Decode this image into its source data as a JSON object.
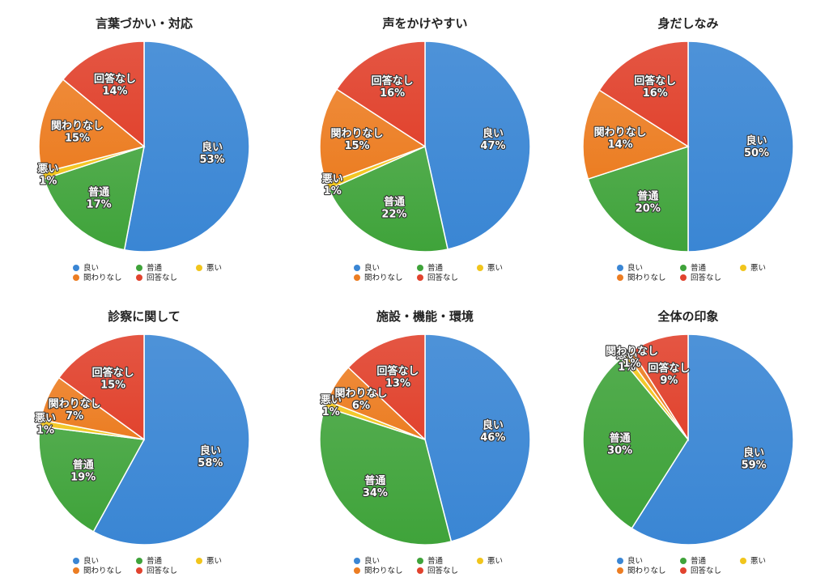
{
  "colors": {
    "good": "#3a86d4",
    "normal": "#3fa33a",
    "bad": "#f1c51c",
    "unrelated": "#ec7d22",
    "no_answer": "#e1432e"
  },
  "chart_data": [
    {
      "type": "pie",
      "title": "言葉づかい・対応",
      "slices": [
        {
          "label": "良い",
          "value": 53,
          "value_label": "53%",
          "key": "good"
        },
        {
          "label": "普通",
          "value": 17,
          "value_label": "17%",
          "key": "normal"
        },
        {
          "label": "悪い",
          "value": 1,
          "value_label": "1%",
          "key": "bad"
        },
        {
          "label": "関わりなし",
          "value": 15,
          "value_label": "15%",
          "key": "unrelated"
        },
        {
          "label": "回答なし",
          "value": 14,
          "value_label": "14%",
          "key": "no_answer"
        }
      ],
      "legend": [
        "良い",
        "普通",
        "悪い",
        "関わりなし",
        "回答なし"
      ]
    },
    {
      "type": "pie",
      "title": "声をかけやすい",
      "slices": [
        {
          "label": "良い",
          "value": 47,
          "value_label": "47%",
          "key": "good"
        },
        {
          "label": "普通",
          "value": 22,
          "value_label": "22%",
          "key": "normal"
        },
        {
          "label": "悪い",
          "value": 1,
          "value_label": "1%",
          "key": "bad"
        },
        {
          "label": "関わりなし",
          "value": 15,
          "value_label": "15%",
          "key": "unrelated"
        },
        {
          "label": "回答なし",
          "value": 16,
          "value_label": "16%",
          "key": "no_answer"
        }
      ],
      "legend": [
        "良い",
        "普通",
        "悪い",
        "関わりなし",
        "回答なし"
      ]
    },
    {
      "type": "pie",
      "title": "身だしなみ",
      "slices": [
        {
          "label": "良い",
          "value": 50,
          "value_label": "50%",
          "key": "good"
        },
        {
          "label": "普通",
          "value": 20,
          "value_label": "20%",
          "key": "normal"
        },
        {
          "label": "悪い",
          "value": 0,
          "value_label": "",
          "key": "bad"
        },
        {
          "label": "関わりなし",
          "value": 14,
          "value_label": "14%",
          "key": "unrelated"
        },
        {
          "label": "回答なし",
          "value": 16,
          "value_label": "16%",
          "key": "no_answer"
        }
      ],
      "legend": [
        "良い",
        "普通",
        "悪い",
        "関わりなし",
        "回答なし"
      ]
    },
    {
      "type": "pie",
      "title": "診察に関して",
      "slices": [
        {
          "label": "良い",
          "value": 58,
          "value_label": "58%",
          "key": "good"
        },
        {
          "label": "普通",
          "value": 19,
          "value_label": "19%",
          "key": "normal"
        },
        {
          "label": "悪い",
          "value": 1,
          "value_label": "1%",
          "key": "bad"
        },
        {
          "label": "関わりなし",
          "value": 7,
          "value_label": "7%",
          "key": "unrelated"
        },
        {
          "label": "回答なし",
          "value": 15,
          "value_label": "15%",
          "key": "no_answer"
        }
      ],
      "legend": [
        "良い",
        "普通",
        "悪い",
        "関わりなし",
        "回答なし"
      ]
    },
    {
      "type": "pie",
      "title": "施設・機能・環境",
      "slices": [
        {
          "label": "良い",
          "value": 46,
          "value_label": "46%",
          "key": "good"
        },
        {
          "label": "普通",
          "value": 34,
          "value_label": "34%",
          "key": "normal"
        },
        {
          "label": "悪い",
          "value": 1,
          "value_label": "1%",
          "key": "bad"
        },
        {
          "label": "関わりなし",
          "value": 6,
          "value_label": "6%",
          "key": "unrelated"
        },
        {
          "label": "回答なし",
          "value": 13,
          "value_label": "13%",
          "key": "no_answer"
        }
      ],
      "legend": [
        "良い",
        "普通",
        "悪い",
        "関わりなし",
        "回答なし"
      ]
    },
    {
      "type": "pie",
      "title": "全体の印象",
      "slices": [
        {
          "label": "良い",
          "value": 59,
          "value_label": "59%",
          "key": "good"
        },
        {
          "label": "普通",
          "value": 30,
          "value_label": "30%",
          "key": "normal"
        },
        {
          "label": "悪い",
          "value": 1,
          "value_label": "1%",
          "key": "bad"
        },
        {
          "label": "関わりなし",
          "value": 1,
          "value_label": "1%",
          "key": "unrelated"
        },
        {
          "label": "回答なし",
          "value": 9,
          "value_label": "9%",
          "key": "no_answer"
        }
      ],
      "legend": [
        "良い",
        "普通",
        "悪い",
        "関わりなし",
        "回答なし"
      ]
    }
  ]
}
